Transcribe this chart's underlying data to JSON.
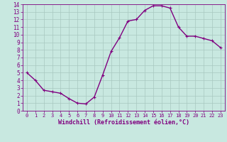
{
  "x": [
    0,
    1,
    2,
    3,
    4,
    5,
    6,
    7,
    8,
    9,
    10,
    11,
    12,
    13,
    14,
    15,
    16,
    17,
    18,
    19,
    20,
    21,
    22,
    23
  ],
  "y": [
    5.0,
    4.0,
    2.7,
    2.5,
    2.3,
    1.6,
    1.0,
    0.9,
    1.8,
    4.7,
    7.8,
    9.6,
    11.8,
    12.0,
    13.2,
    13.8,
    13.8,
    13.5,
    11.0,
    9.8,
    9.8,
    9.5,
    9.2,
    8.3
  ],
  "color": "#800080",
  "bg_color": "#c8e8e0",
  "grid_color": "#a8c8c0",
  "xlabel": "Windchill (Refroidissement éolien,°C)",
  "xlabel_color": "#800080",
  "tick_color": "#800080",
  "spine_color": "#800080",
  "xlim": [
    -0.5,
    23.5
  ],
  "ylim": [
    0,
    14
  ],
  "yticks": [
    0,
    1,
    2,
    3,
    4,
    5,
    6,
    7,
    8,
    9,
    10,
    11,
    12,
    13,
    14
  ],
  "xticks": [
    0,
    1,
    2,
    3,
    4,
    5,
    6,
    7,
    8,
    9,
    10,
    11,
    12,
    13,
    14,
    15,
    16,
    17,
    18,
    19,
    20,
    21,
    22,
    23
  ],
  "markersize": 3.5,
  "linewidth": 1.0
}
